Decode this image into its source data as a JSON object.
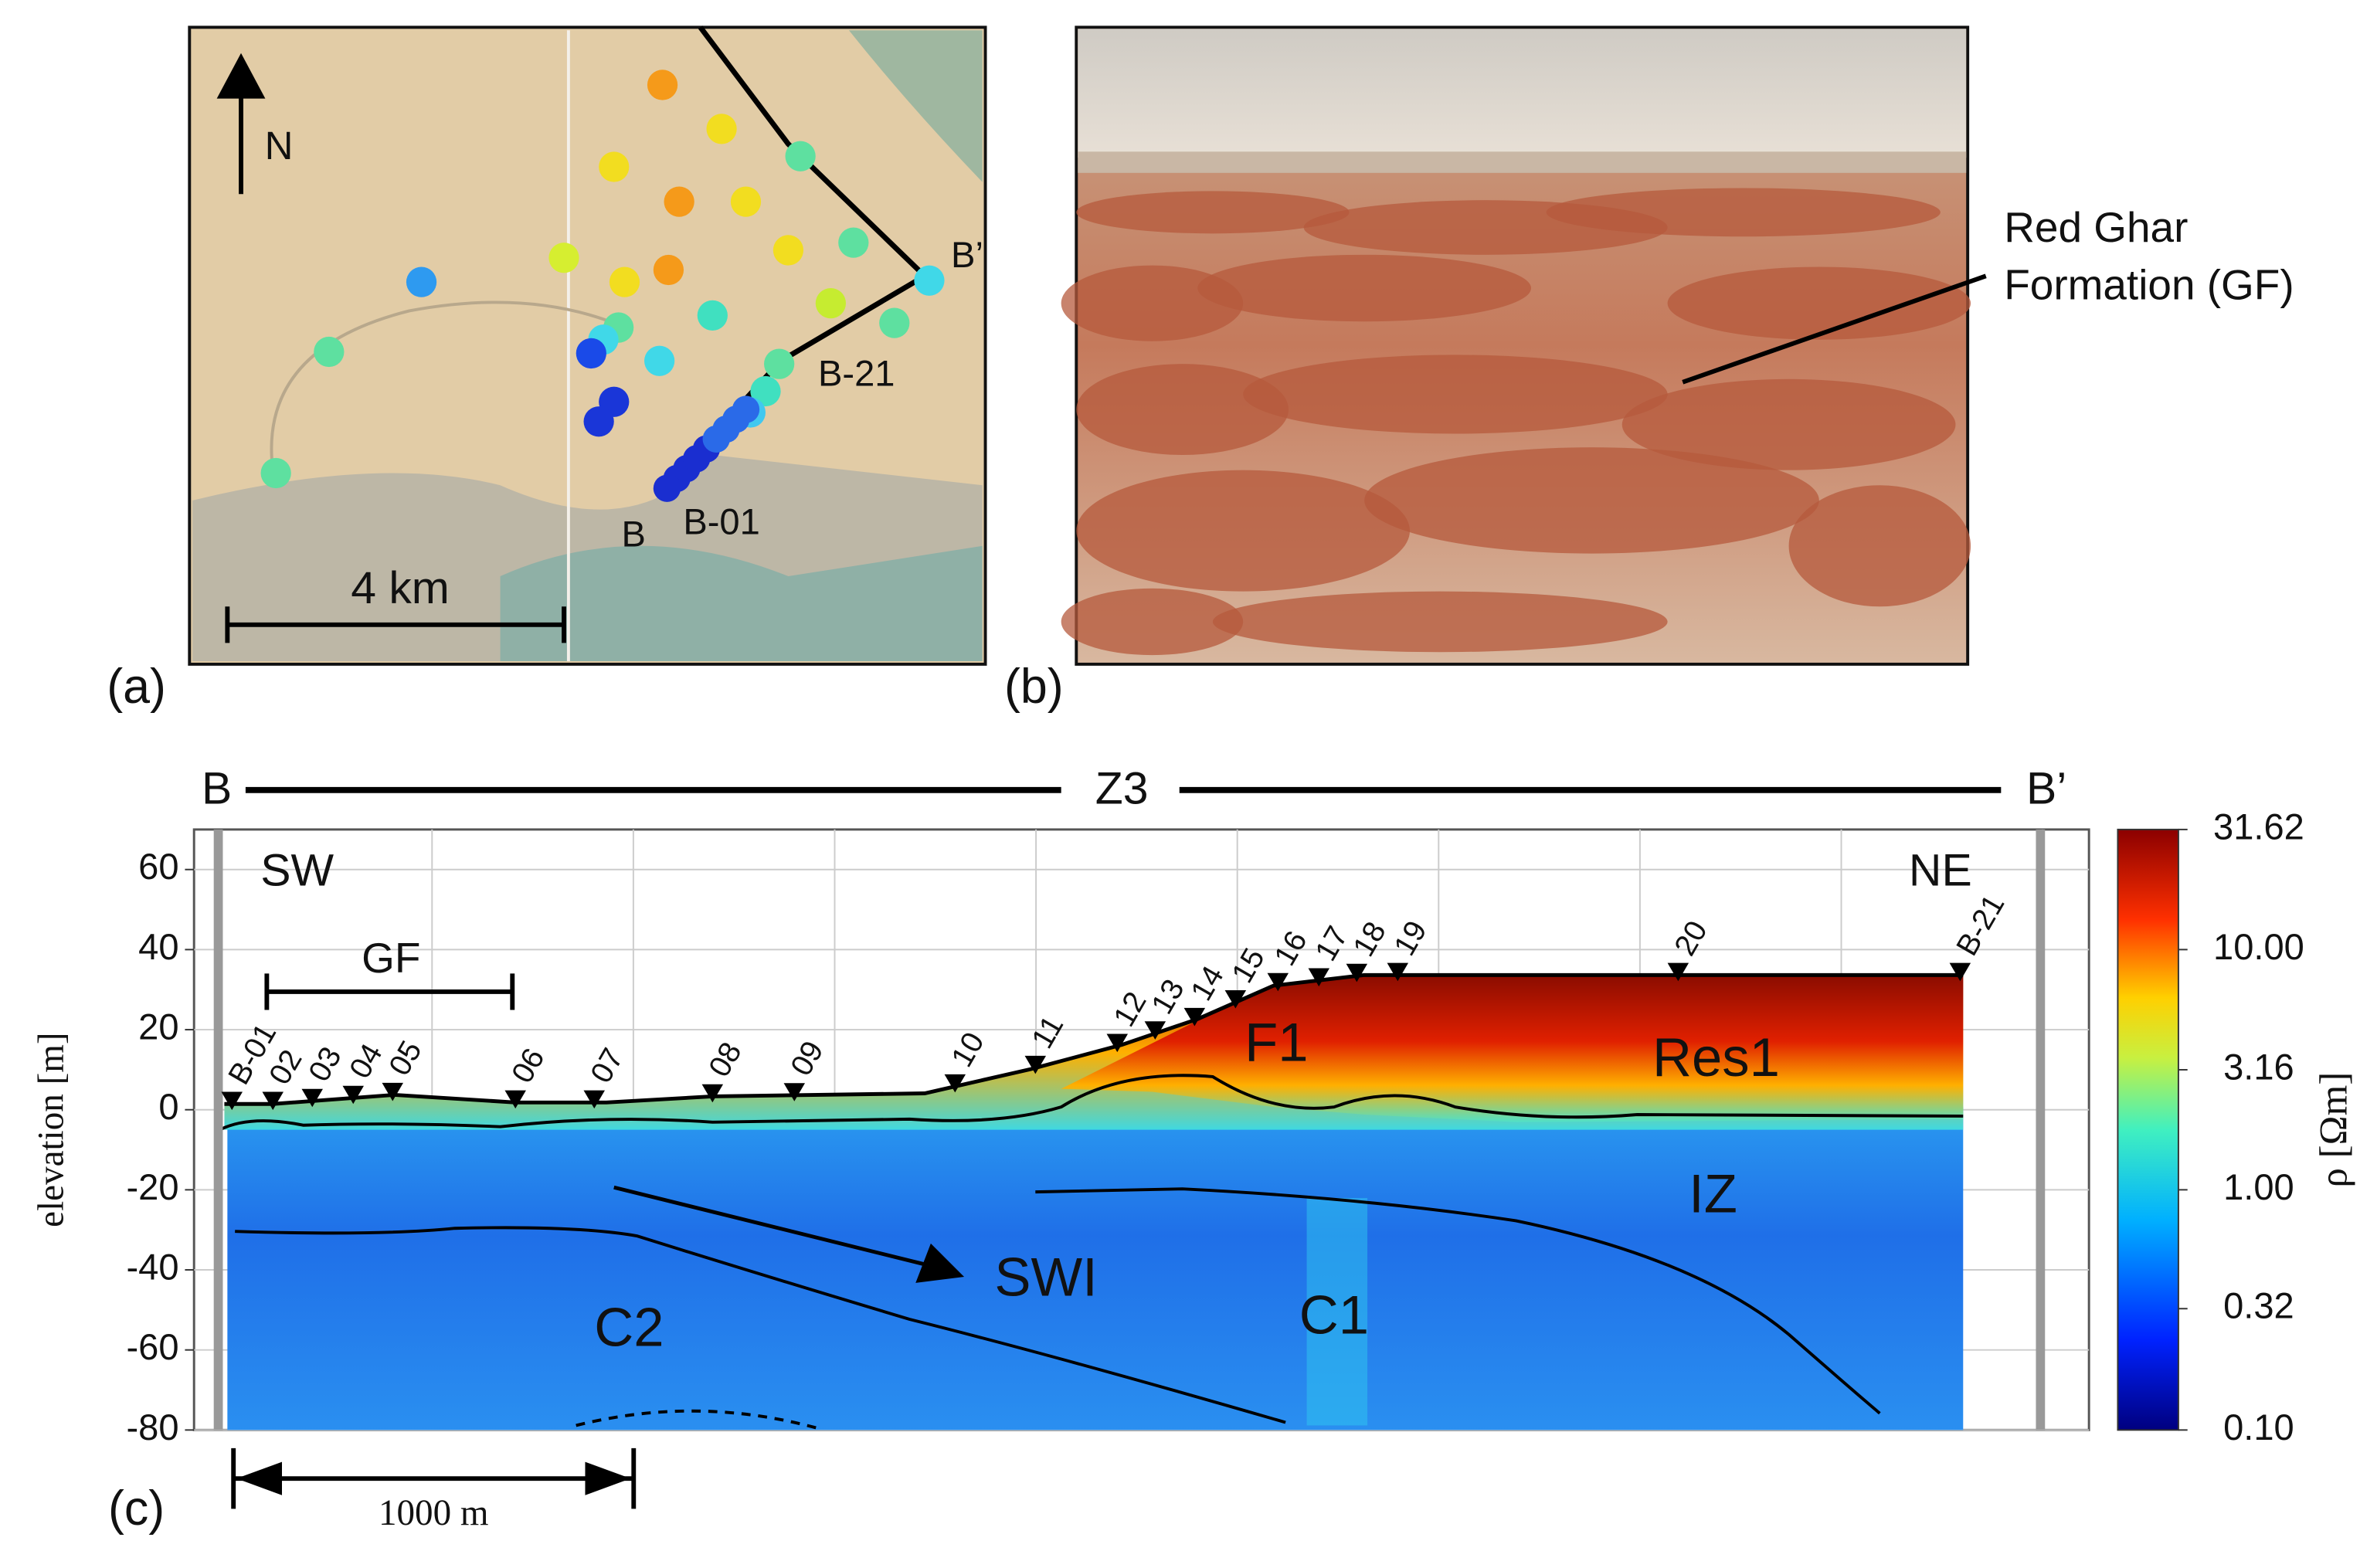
{
  "panel_labels": [
    "(a)",
    "(b)",
    "(c)"
  ],
  "map": {
    "north": "N",
    "scale": "4 km",
    "b": "B",
    "b01": "B-01",
    "b21": "B-21",
    "bprime": "B’"
  },
  "photo": {
    "annotation": [
      "Red Ghar",
      "Formation (GF)"
    ]
  },
  "chart_data": {
    "type": "resistivity-section",
    "profile": {
      "start": "B",
      "name": "Z3",
      "end": "B’"
    },
    "ylabel": "elevation [m]",
    "ylim": [
      -80,
      70
    ],
    "yticks": [
      -80,
      -60,
      -40,
      -20,
      0,
      20,
      40,
      60
    ],
    "grid": true,
    "stations": [
      "B-01",
      "02",
      "03",
      "04",
      "05",
      "06",
      "07",
      "08",
      "09",
      "10",
      "11",
      "12",
      "13",
      "14",
      "15",
      "16",
      "17",
      "18",
      "19",
      "20",
      "B-21"
    ],
    "annotations": [
      "SW",
      "NE",
      "GF",
      "F1",
      "Res1",
      "IZ",
      "SWI",
      "C1",
      "C2"
    ],
    "scale_bar": "1000 m",
    "colorbar": {
      "label": "ρ [Ωm]",
      "log": true,
      "lim": [
        0.1,
        31.62
      ],
      "ticks": [
        {
          "value": 0.1,
          "label": "0.10"
        },
        {
          "value": 0.32,
          "label": "0.32"
        },
        {
          "value": 1,
          "label": "1.00"
        },
        {
          "value": 3.16,
          "label": "3.16"
        },
        {
          "value": 10,
          "label": "10.00"
        },
        31.62
      ]
    }
  }
}
